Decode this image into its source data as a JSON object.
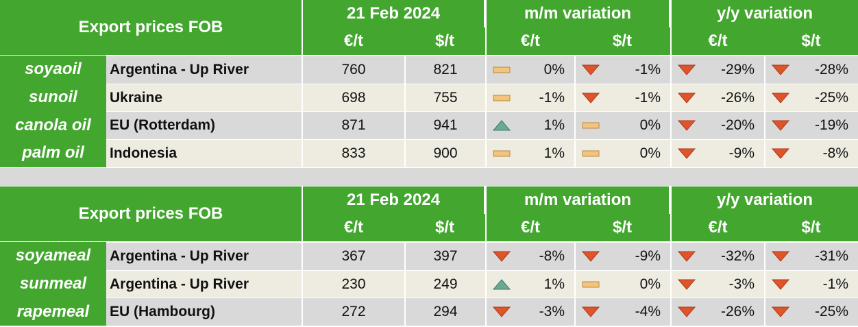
{
  "tables": [
    {
      "header": {
        "title": "Export prices FOB",
        "date": "21 Feb 2024",
        "mm": "m/m variation",
        "yy": "y/y variation",
        "units": [
          "€/t",
          "$/t",
          "€/t",
          "$/t",
          "€/t",
          "$/t"
        ]
      },
      "rows": [
        {
          "product": "soyaoil",
          "origin": "Argentina - Up River",
          "prices": [
            760,
            821
          ],
          "variations": [
            {
              "text": "0%",
              "icon": "flat"
            },
            {
              "text": "-1%",
              "icon": "down"
            },
            {
              "text": "-29%",
              "icon": "down"
            },
            {
              "text": "-28%",
              "icon": "down"
            }
          ]
        },
        {
          "product": "sunoil",
          "origin": "Ukraine",
          "prices": [
            698,
            755
          ],
          "variations": [
            {
              "text": "-1%",
              "icon": "flat"
            },
            {
              "text": "-1%",
              "icon": "down"
            },
            {
              "text": "-26%",
              "icon": "down"
            },
            {
              "text": "-25%",
              "icon": "down"
            }
          ]
        },
        {
          "product": "canola oil",
          "origin": "EU (Rotterdam)",
          "prices": [
            871,
            941
          ],
          "variations": [
            {
              "text": "1%",
              "icon": "up"
            },
            {
              "text": "0%",
              "icon": "flat"
            },
            {
              "text": "-20%",
              "icon": "down"
            },
            {
              "text": "-19%",
              "icon": "down"
            }
          ]
        },
        {
          "product": "palm oil",
          "origin": "Indonesia",
          "prices": [
            833,
            900
          ],
          "variations": [
            {
              "text": "1%",
              "icon": "flat"
            },
            {
              "text": "0%",
              "icon": "flat"
            },
            {
              "text": "-9%",
              "icon": "down"
            },
            {
              "text": "-8%",
              "icon": "down"
            }
          ]
        }
      ]
    },
    {
      "header": {
        "title": "Export prices FOB",
        "date": "21 Feb 2024",
        "mm": "m/m variation",
        "yy": "y/y variation",
        "units": [
          "€/t",
          "$/t",
          "€/t",
          "$/t",
          "€/t",
          "$/t"
        ]
      },
      "rows": [
        {
          "product": "soyameal",
          "origin": "Argentina - Up River",
          "prices": [
            367,
            397
          ],
          "variations": [
            {
              "text": "-8%",
              "icon": "down"
            },
            {
              "text": "-9%",
              "icon": "down"
            },
            {
              "text": "-32%",
              "icon": "down"
            },
            {
              "text": "-31%",
              "icon": "down"
            }
          ]
        },
        {
          "product": "sunmeal",
          "origin": "Argentina - Up River",
          "prices": [
            230,
            249
          ],
          "variations": [
            {
              "text": "1%",
              "icon": "up"
            },
            {
              "text": "0%",
              "icon": "flat"
            },
            {
              "text": "-3%",
              "icon": "down"
            },
            {
              "text": "-1%",
              "icon": "down"
            }
          ]
        },
        {
          "product": "rapemeal",
          "origin": "EU (Hambourg)",
          "prices": [
            272,
            294
          ],
          "variations": [
            {
              "text": "-3%",
              "icon": "down"
            },
            {
              "text": "-4%",
              "icon": "down"
            },
            {
              "text": "-26%",
              "icon": "down"
            },
            {
              "text": "-25%",
              "icon": "down"
            }
          ]
        }
      ]
    }
  ]
}
